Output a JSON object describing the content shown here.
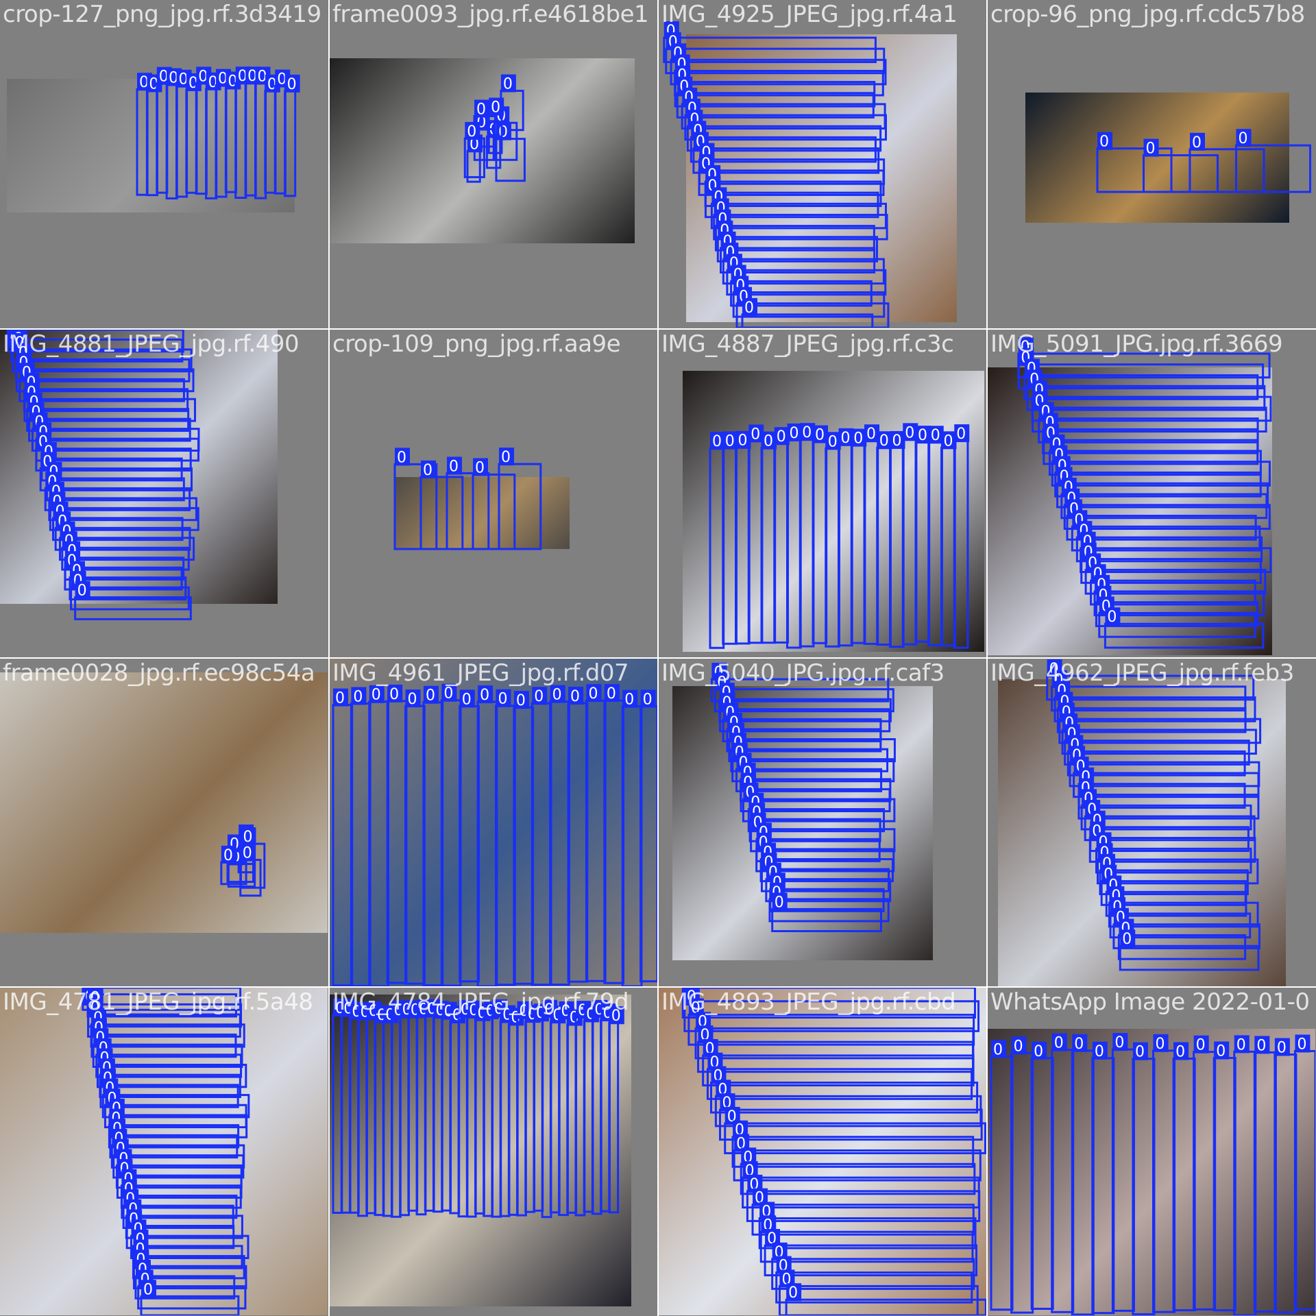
{
  "colors": {
    "box_stroke": "#1a2ff5",
    "label_bg": "#1a2ff5",
    "label_text": "#ffffff",
    "background": "#808080"
  },
  "tiles": [
    {
      "title": "crop-127_png_jpg.rf.3d3419",
      "scene": {
        "bg": "#6f6f70",
        "tone": "#9a9a9a"
      },
      "box_count": 16,
      "label": "0",
      "layout": "vertical-spines",
      "region": [
        200,
        120,
        430,
        290
      ]
    },
    {
      "title": "frame0093_jpg.rf.e4618be1",
      "scene": {
        "bg": "#1f1f1f",
        "tone": "#b7b8b5"
      },
      "box_count": 9,
      "label": "0",
      "layout": "small-cluster",
      "region": [
        670,
        130,
        780,
        340
      ]
    },
    {
      "title": "IMG_4925_JPEG_jpg.rf.4a1",
      "scene": {
        "bg": "#8b6546",
        "tone": "#cfd3de"
      },
      "box_count": 26,
      "label": "0",
      "layout": "horizontal-stack",
      "region": [
        965,
        55,
        1295,
        475
      ]
    },
    {
      "title": "crop-96_png_jpg.rf.cdc57b8",
      "scene": {
        "bg": "#0f1a2a",
        "tone": "#b48b4f"
      },
      "box_count": 4,
      "label": "0",
      "layout": "low-pair",
      "region": [
        1600,
        210,
        1870,
        280
      ]
    },
    {
      "title": "IMG_4881_JPEG_jpg.rf.490",
      "scene": {
        "bg": "#2a2320",
        "tone": "#c8ccd6"
      },
      "box_count": 28,
      "label": "0",
      "layout": "horizontal-stack",
      "region": [
        10,
        480,
        290,
        885
      ]
    },
    {
      "title": "crop-109_png_jpg.rf.aa9e",
      "scene": {
        "bg": "#4f4a44",
        "tone": "#a88b62"
      },
      "box_count": 5,
      "label": "0",
      "layout": "low-pair",
      "region": [
        575,
        675,
        765,
        800
      ]
    },
    {
      "title": "IMG_4887_JPEG_jpg.rf.c3c",
      "scene": {
        "bg": "#1e1a18",
        "tone": "#d7d9df"
      },
      "box_count": 20,
      "label": "0",
      "layout": "vertical-spines",
      "region": [
        1035,
        640,
        1410,
        945
      ]
    },
    {
      "title": "IMG_5091_JPG.jpg.rf.3669",
      "scene": {
        "bg": "#261c18",
        "tone": "#c9cbd6"
      },
      "box_count": 26,
      "label": "0",
      "layout": "horizontal-stack",
      "region": [
        1480,
        515,
        1855,
        925
      ]
    },
    {
      "title": "frame0028_jpg.rf.ec98c54a",
      "scene": {
        "bg": "#c9c6bf",
        "tone": "#8b6f4e"
      },
      "box_count": 6,
      "label": "0",
      "layout": "small-cluster",
      "region": [
        310,
        1215,
        405,
        1305
      ]
    },
    {
      "title": "IMG_4961_JPEG_jpg.rf.d07",
      "scene": {
        "bg": "#8a7f74",
        "tone": "#3b5a8e"
      },
      "box_count": 18,
      "label": "0",
      "layout": "vertical-spines",
      "region": [
        485,
        1020,
        960,
        1440
      ]
    },
    {
      "title": "IMG_5040_JPG.jpg.rf.caf3",
      "scene": {
        "bg": "#2c2725",
        "tone": "#d2d5dc"
      },
      "box_count": 24,
      "label": "0",
      "layout": "horizontal-stack",
      "region": [
        1035,
        990,
        1305,
        1340
      ]
    },
    {
      "title": "IMG_4962_JPEG_jpg.rf.feb3",
      "scene": {
        "bg": "#5a4538",
        "tone": "#cdd1d8"
      },
      "box_count": 26,
      "label": "0",
      "layout": "horizontal-stack",
      "region": [
        1525,
        985,
        1840,
        1395
      ]
    },
    {
      "title": "IMG_4781_JPEG_jpg.rf.5a48",
      "scene": {
        "bg": "#a68e72",
        "tone": "#d6d9e2"
      },
      "box_count": 32,
      "label": "0",
      "layout": "horizontal-stack",
      "region": [
        120,
        1435,
        365,
        1905
      ]
    },
    {
      "title": "IMG_4784_JPEG_jpg.rf.79d",
      "scene": {
        "bg": "#20202a",
        "tone": "#c9c1b2"
      },
      "box_count": 34,
      "label": "0",
      "layout": "vertical-spines",
      "region": [
        485,
        1480,
        900,
        1775
      ]
    },
    {
      "title": "IMG_4893_JPEG_jpg.rf.cbd",
      "scene": {
        "bg": "#a37b5c",
        "tone": "#dfe3ea"
      },
      "box_count": 24,
      "label": "0",
      "layout": "horizontal-stack",
      "region": [
        990,
        1440,
        1440,
        1915
      ]
    },
    {
      "title": "WhatsApp Image 2022-01-0",
      "scene": {
        "bg": "#3a3234",
        "tone": "#b9a7a3"
      },
      "box_count": 16,
      "label": "0",
      "layout": "vertical-spines",
      "region": [
        1445,
        1530,
        1918,
        1918
      ]
    }
  ]
}
